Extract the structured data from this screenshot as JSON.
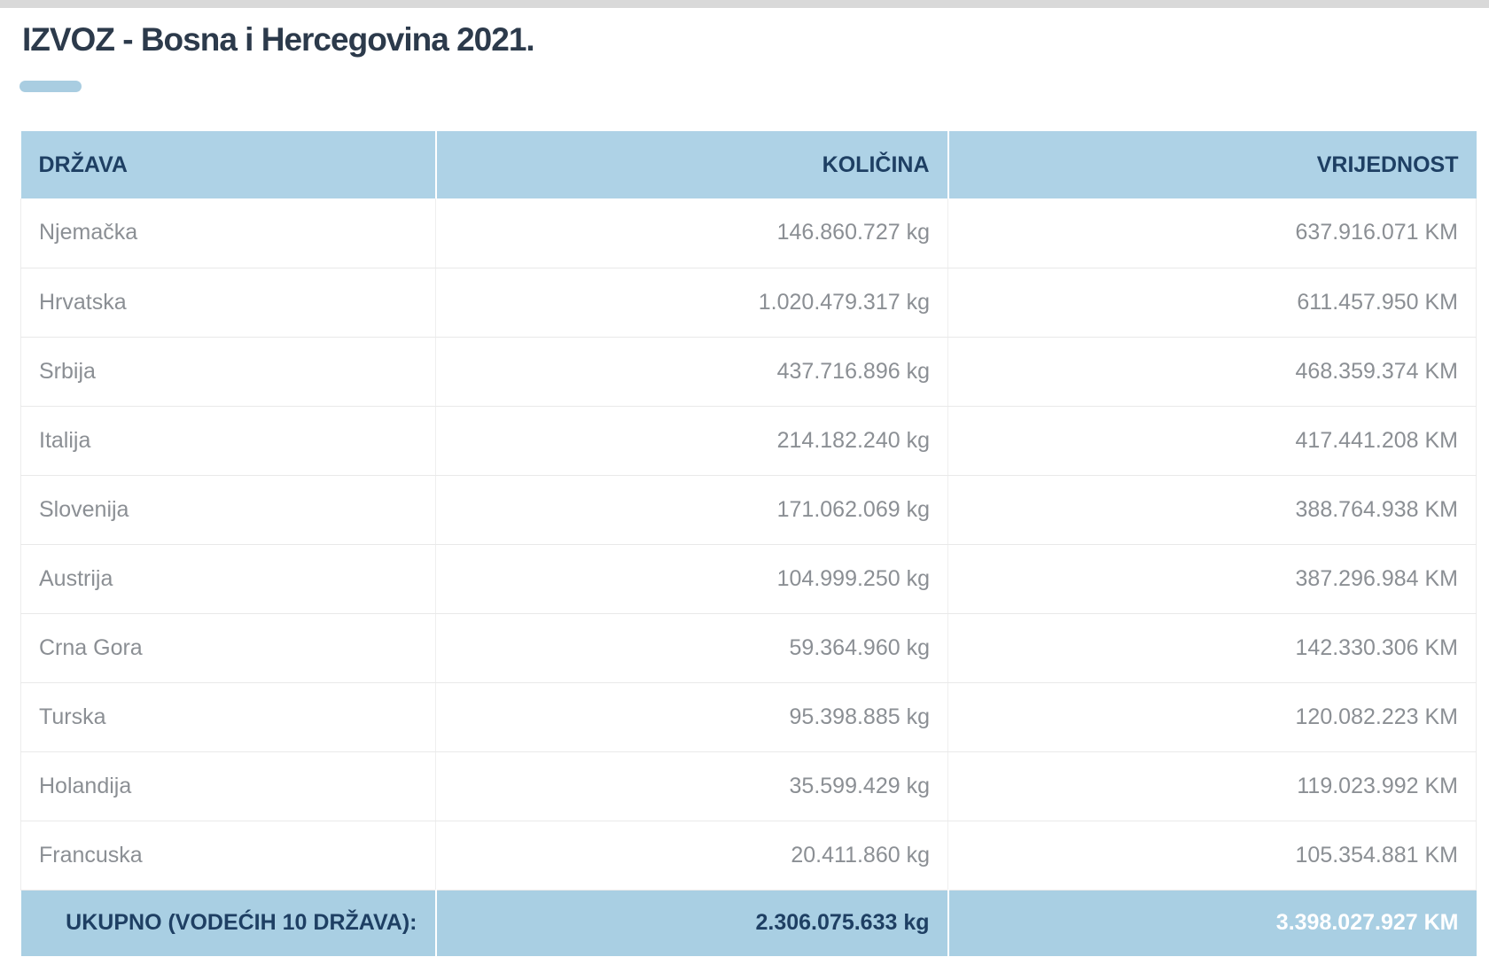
{
  "page": {
    "title": "IZVOZ - Bosna i Hercegovina 2021."
  },
  "table": {
    "headers": {
      "country": "DRŽAVA",
      "quantity": "KOLIČINA",
      "value": "VRIJEDNOST"
    },
    "rows": [
      {
        "country": "Njemačka",
        "quantity": "146.860.727 kg",
        "value": "637.916.071 KM"
      },
      {
        "country": "Hrvatska",
        "quantity": "1.020.479.317 kg",
        "value": "611.457.950 KM"
      },
      {
        "country": "Srbija",
        "quantity": "437.716.896 kg",
        "value": "468.359.374 KM"
      },
      {
        "country": "Italija",
        "quantity": "214.182.240 kg",
        "value": "417.441.208 KM"
      },
      {
        "country": "Slovenija",
        "quantity": "171.062.069 kg",
        "value": "388.764.938 KM"
      },
      {
        "country": "Austrija",
        "quantity": "104.999.250 kg",
        "value": "387.296.984 KM"
      },
      {
        "country": "Crna Gora",
        "quantity": "59.364.960 kg",
        "value": "142.330.306 KM"
      },
      {
        "country": "Turska",
        "quantity": "95.398.885 kg",
        "value": "120.082.223 KM"
      },
      {
        "country": "Holandija",
        "quantity": "35.599.429 kg",
        "value": "119.023.992 KM"
      },
      {
        "country": "Francuska",
        "quantity": "20.411.860 kg",
        "value": "105.354.881 KM"
      }
    ],
    "footer": {
      "label": "UKUPNO (VODEĆIH 10 DRŽAVA):",
      "quantity": "2.306.075.633 kg",
      "value": "3.398.027.927 KM"
    }
  },
  "colors": {
    "top_strip": "#d9d9d9",
    "accent_blue": "#aed2e6",
    "footer_blue": "#a9cfe3",
    "title_dash_blue": "#a9cde1",
    "header_text": "#1e3f63",
    "title_text": "#2c3a4b",
    "body_text": "#8b8f94",
    "total_value_text": "#ffffff",
    "row_line": "#e9e9e9"
  },
  "chart_data": {
    "type": "table",
    "title": "IZVOZ - Bosna i Hercegovina 2021.",
    "columns": [
      "DRŽAVA",
      "KOLIČINA",
      "VRIJEDNOST"
    ],
    "units": {
      "quantity": "kg",
      "value": "KM"
    },
    "rows": [
      {
        "country": "Njemačka",
        "quantity_kg": 146860727,
        "value_km": 637916071
      },
      {
        "country": "Hrvatska",
        "quantity_kg": 1020479317,
        "value_km": 611457950
      },
      {
        "country": "Srbija",
        "quantity_kg": 437716896,
        "value_km": 468359374
      },
      {
        "country": "Italija",
        "quantity_kg": 214182240,
        "value_km": 417441208
      },
      {
        "country": "Slovenija",
        "quantity_kg": 171062069,
        "value_km": 388764938
      },
      {
        "country": "Austrija",
        "quantity_kg": 104999250,
        "value_km": 387296984
      },
      {
        "country": "Crna Gora",
        "quantity_kg": 59364960,
        "value_km": 142330306
      },
      {
        "country": "Turska",
        "quantity_kg": 95398885,
        "value_km": 120082223
      },
      {
        "country": "Holandija",
        "quantity_kg": 35599429,
        "value_km": 119023992
      },
      {
        "country": "Francuska",
        "quantity_kg": 20411860,
        "value_km": 105354881
      }
    ],
    "total": {
      "label": "UKUPNO (VODEĆIH 10 DRŽAVA):",
      "quantity_kg": 2306075633,
      "value_km": 3398027927
    }
  }
}
